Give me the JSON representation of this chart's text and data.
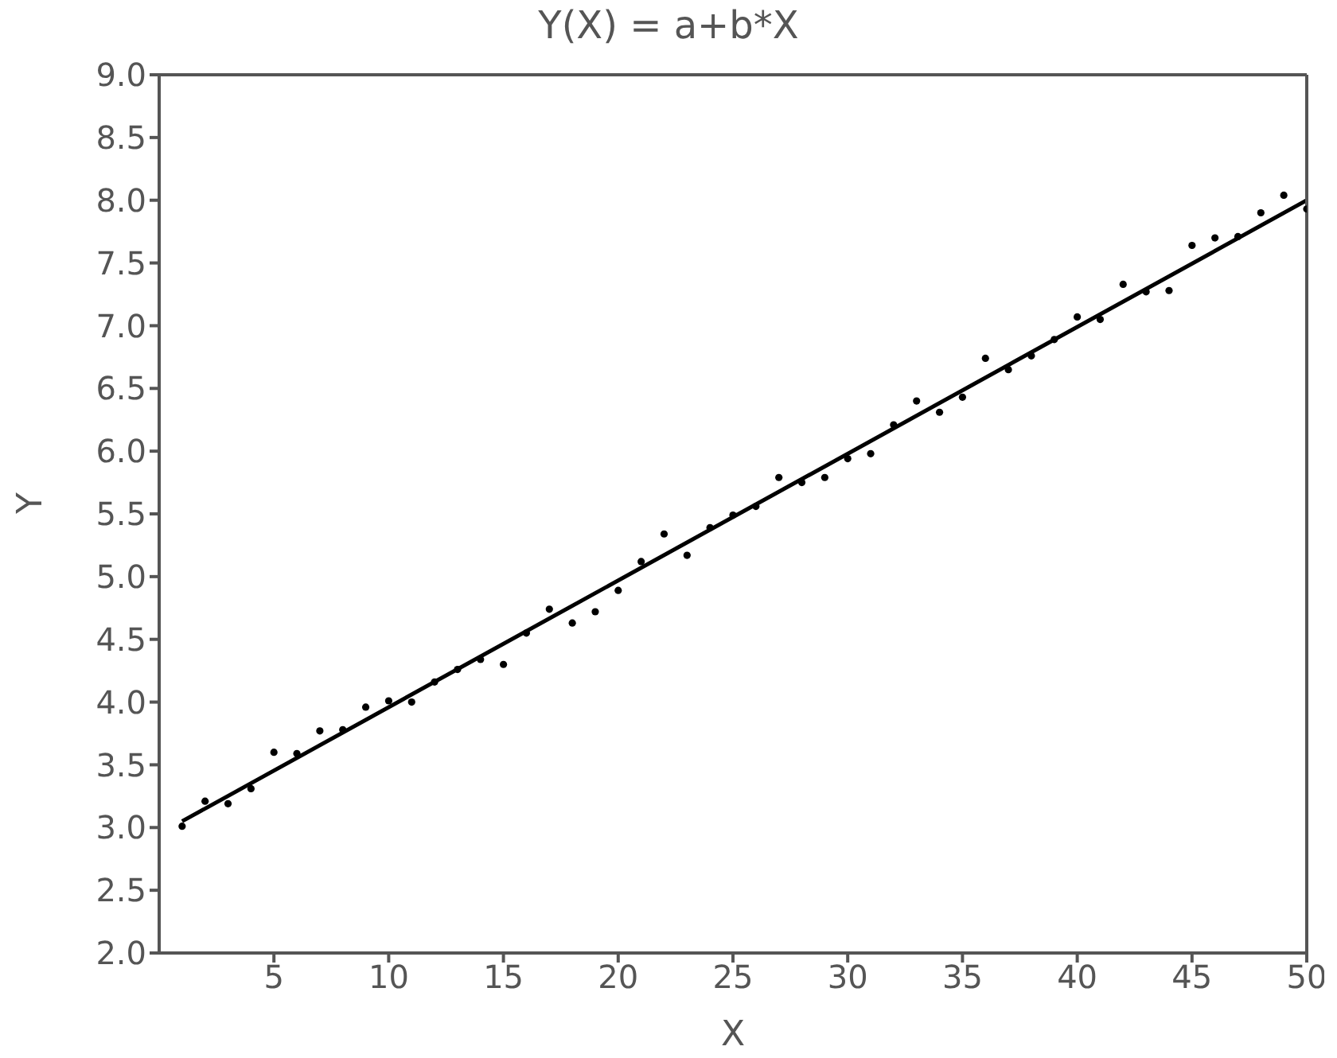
{
  "chart_data": {
    "type": "scatter",
    "title": "Y(X) = a+b*X",
    "xlabel": "X",
    "ylabel": "Y",
    "xlim": [
      0,
      50
    ],
    "xticks": [
      5,
      10,
      15,
      20,
      25,
      30,
      35,
      40,
      45,
      50
    ],
    "ylim": [
      2,
      9
    ],
    "yticks": [
      {
        "value": 2,
        "label": "2.0"
      },
      {
        "value": 2.5,
        "label": "2.5"
      },
      {
        "value": 3,
        "label": "3.0"
      },
      {
        "value": 3.5,
        "label": "3.5"
      },
      {
        "value": 4,
        "label": "4.0"
      },
      {
        "value": 4.5,
        "label": "4.5"
      },
      {
        "value": 5,
        "label": "5.0"
      },
      {
        "value": 5.5,
        "label": "5.5"
      },
      {
        "value": 6,
        "label": "6.0"
      },
      {
        "value": 6.5,
        "label": "6.5"
      },
      {
        "value": 7,
        "label": "7.0"
      },
      {
        "value": 7.5,
        "label": "7.5"
      },
      {
        "value": 8,
        "label": "8.0"
      },
      {
        "value": 8.5,
        "label": "8.5"
      },
      {
        "value": 9,
        "label": "9.0"
      }
    ],
    "series": [
      {
        "color": "#000000",
        "marker": "circle",
        "x": [
          1,
          2,
          3,
          4,
          5,
          6,
          7,
          8,
          9,
          10,
          11,
          12,
          13,
          14,
          15,
          16,
          17,
          18,
          19,
          20,
          21,
          22,
          23,
          24,
          25,
          26,
          27,
          28,
          29,
          30,
          31,
          32,
          33,
          34,
          35,
          36,
          37,
          38,
          39,
          40,
          41,
          42,
          43,
          44,
          45,
          46,
          47,
          48,
          49,
          50
        ],
        "values": [
          3.01,
          3.21,
          3.19,
          3.31,
          3.6,
          3.59,
          3.77,
          3.78,
          3.96,
          4.01,
          4.0,
          4.16,
          4.26,
          4.34,
          4.3,
          4.55,
          4.74,
          4.63,
          4.72,
          4.89,
          5.12,
          5.34,
          5.17,
          5.39,
          5.49,
          5.56,
          5.79,
          5.75,
          5.79,
          5.94,
          5.98,
          6.21,
          6.4,
          6.31,
          6.43,
          6.74,
          6.65,
          6.76,
          6.89,
          7.07,
          7.05,
          7.33,
          7.27,
          7.28,
          7.64,
          7.7,
          7.71,
          7.9,
          8.04,
          7.93
        ]
      },
      {
        "type": "line",
        "color": "#000000",
        "marker": "none",
        "line_style": "solid",
        "x": [
          1,
          50
        ],
        "values": [
          3.05,
          8.0
        ]
      }
    ]
  }
}
